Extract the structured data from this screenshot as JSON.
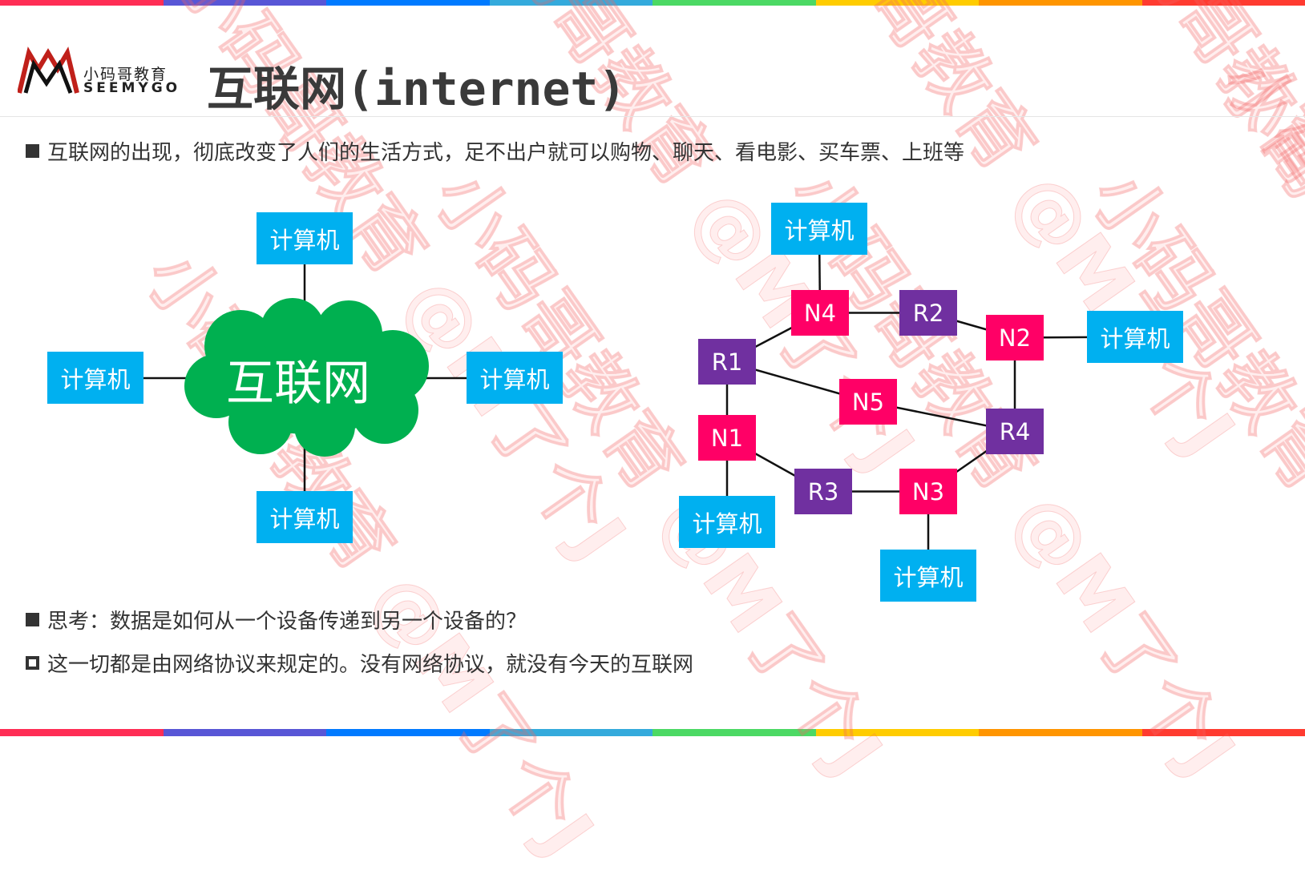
{
  "colors": {
    "computer": "#00b0f0",
    "n_node": "#ff0066",
    "r_node": "#7030a0",
    "cloud": "#00b050",
    "rainbow": [
      "#ff2d55",
      "#5856d6",
      "#007aff",
      "#34aadc",
      "#4cd964",
      "#ffcc00",
      "#ff9500",
      "#ff3b30"
    ]
  },
  "logo": {
    "cn": "小码哥教育",
    "en": "SEEMYGO"
  },
  "watermark": "小码哥教育 @M了个J",
  "title": {
    "cn": "互联网",
    "en": "(internet)"
  },
  "bullets": {
    "intro": "互联网的出现，彻底改变了人们的生活方式，足不出户就可以购物、聊天、看电影、买车票、上班等",
    "question": "思考：数据是如何从一个设备传递到另一个设备的？",
    "answer": "这一切都是由网络协议来规定的。没有网络协议，就没有今天的互联网"
  },
  "left_diagram": {
    "cloud_label": "互联网",
    "computers": [
      "计算机",
      "计算机",
      "计算机",
      "计算机"
    ]
  },
  "right_diagram": {
    "nodes": [
      {
        "id": "c1",
        "label": "计算机",
        "kind": "comp"
      },
      {
        "id": "N4",
        "label": "N4",
        "kind": "n"
      },
      {
        "id": "R2",
        "label": "R2",
        "kind": "r"
      },
      {
        "id": "N2",
        "label": "N2",
        "kind": "n"
      },
      {
        "id": "c2",
        "label": "计算机",
        "kind": "comp"
      },
      {
        "id": "R1",
        "label": "R1",
        "kind": "r"
      },
      {
        "id": "N5",
        "label": "N5",
        "kind": "n"
      },
      {
        "id": "N1",
        "label": "N1",
        "kind": "n"
      },
      {
        "id": "R4",
        "label": "R4",
        "kind": "r"
      },
      {
        "id": "R3",
        "label": "R3",
        "kind": "r"
      },
      {
        "id": "N3",
        "label": "N3",
        "kind": "n"
      },
      {
        "id": "c3",
        "label": "计算机",
        "kind": "comp"
      },
      {
        "id": "c4",
        "label": "计算机",
        "kind": "comp"
      }
    ],
    "edges": [
      [
        "c1",
        "N4"
      ],
      [
        "N4",
        "R2"
      ],
      [
        "R2",
        "N2"
      ],
      [
        "N2",
        "c2"
      ],
      [
        "N4",
        "R1"
      ],
      [
        "R1",
        "N5"
      ],
      [
        "N5",
        "R4"
      ],
      [
        "R1",
        "N1"
      ],
      [
        "N1",
        "c3"
      ],
      [
        "N1",
        "R3"
      ],
      [
        "R3",
        "N3"
      ],
      [
        "N3",
        "R4"
      ],
      [
        "N3",
        "c4"
      ],
      [
        "N2",
        "R4"
      ]
    ]
  }
}
